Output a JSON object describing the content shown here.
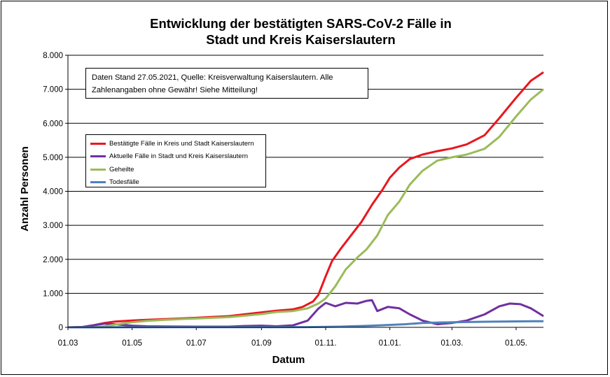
{
  "chart_data": {
    "type": "line",
    "title": "Entwicklung der bestätigten SARS-CoV-2 Fälle in\nStadt und Kreis Kaiserslautern",
    "xlabel": "Datum",
    "ylabel": "Anzahl Personen",
    "note": "Daten Stand 27.05.2021, Quelle: Kreisverwaltung Kaiserslautern. Alle Zahlenangaben ohne Gewähr! Siehe Mitteilung!",
    "ylim": [
      0,
      8000
    ],
    "y_ticks": [
      "0",
      "1.000",
      "2.000",
      "3.000",
      "4.000",
      "5.000",
      "6.000",
      "7.000",
      "8.000"
    ],
    "x_start": "2020-03-01",
    "x_end": "2021-05-27",
    "x_ticks": [
      {
        "date": "2020-03-01",
        "label": "01.03"
      },
      {
        "date": "2020-05-01",
        "label": "01.05"
      },
      {
        "date": "2020-07-01",
        "label": "01.07"
      },
      {
        "date": "2020-09-01",
        "label": "01.09"
      },
      {
        "date": "2020-11-01",
        "label": "01.11."
      },
      {
        "date": "2021-01-01",
        "label": "01.01."
      },
      {
        "date": "2021-03-01",
        "label": "01.03."
      },
      {
        "date": "2021-05-01",
        "label": "01.05."
      }
    ],
    "grid": true,
    "legend_position": "top-left",
    "series": [
      {
        "name": "Bestätigte Fälle in Kreis und Stadt Kaiserslautern",
        "color": "#e8171e",
        "points": [
          [
            "2020-03-01",
            0
          ],
          [
            "2020-03-15",
            10
          ],
          [
            "2020-03-25",
            60
          ],
          [
            "2020-04-05",
            130
          ],
          [
            "2020-04-15",
            170
          ],
          [
            "2020-05-01",
            200
          ],
          [
            "2020-05-15",
            220
          ],
          [
            "2020-06-01",
            240
          ],
          [
            "2020-06-15",
            260
          ],
          [
            "2020-07-01",
            280
          ],
          [
            "2020-07-15",
            305
          ],
          [
            "2020-08-01",
            330
          ],
          [
            "2020-08-15",
            380
          ],
          [
            "2020-09-01",
            440
          ],
          [
            "2020-09-15",
            490
          ],
          [
            "2020-10-01",
            530
          ],
          [
            "2020-10-10",
            600
          ],
          [
            "2020-10-20",
            760
          ],
          [
            "2020-10-25",
            950
          ],
          [
            "2020-11-01",
            1500
          ],
          [
            "2020-11-07",
            1950
          ],
          [
            "2020-11-15",
            2300
          ],
          [
            "2020-11-25",
            2700
          ],
          [
            "2020-12-05",
            3100
          ],
          [
            "2020-12-15",
            3600
          ],
          [
            "2020-12-25",
            4050
          ],
          [
            "2021-01-01",
            4400
          ],
          [
            "2021-01-10",
            4700
          ],
          [
            "2021-01-20",
            4950
          ],
          [
            "2021-02-01",
            5080
          ],
          [
            "2021-02-15",
            5180
          ],
          [
            "2021-03-01",
            5260
          ],
          [
            "2021-03-15",
            5380
          ],
          [
            "2021-04-01",
            5650
          ],
          [
            "2021-04-15",
            6150
          ],
          [
            "2021-05-01",
            6750
          ],
          [
            "2021-05-15",
            7250
          ],
          [
            "2021-05-27",
            7500
          ]
        ]
      },
      {
        "name": "Aktuelle Fälle in Stadt und Kreis Kaiserslautern",
        "color": "#7030a0",
        "points": [
          [
            "2020-03-01",
            0
          ],
          [
            "2020-03-15",
            10
          ],
          [
            "2020-03-25",
            60
          ],
          [
            "2020-04-05",
            110
          ],
          [
            "2020-04-15",
            90
          ],
          [
            "2020-05-01",
            50
          ],
          [
            "2020-05-15",
            30
          ],
          [
            "2020-06-01",
            25
          ],
          [
            "2020-07-01",
            20
          ],
          [
            "2020-08-01",
            20
          ],
          [
            "2020-08-15",
            40
          ],
          [
            "2020-09-01",
            50
          ],
          [
            "2020-09-15",
            30
          ],
          [
            "2020-10-01",
            60
          ],
          [
            "2020-10-15",
            200
          ],
          [
            "2020-10-25",
            550
          ],
          [
            "2020-11-01",
            720
          ],
          [
            "2020-11-10",
            620
          ],
          [
            "2020-11-20",
            720
          ],
          [
            "2020-12-01",
            700
          ],
          [
            "2020-12-10",
            780
          ],
          [
            "2020-12-15",
            800
          ],
          [
            "2020-12-20",
            480
          ],
          [
            "2020-12-30",
            600
          ],
          [
            "2021-01-10",
            560
          ],
          [
            "2021-01-20",
            380
          ],
          [
            "2021-02-01",
            200
          ],
          [
            "2021-02-15",
            90
          ],
          [
            "2021-03-01",
            130
          ],
          [
            "2021-03-15",
            200
          ],
          [
            "2021-04-01",
            380
          ],
          [
            "2021-04-15",
            620
          ],
          [
            "2021-04-25",
            700
          ],
          [
            "2021-05-05",
            680
          ],
          [
            "2021-05-15",
            560
          ],
          [
            "2021-05-27",
            330
          ]
        ]
      },
      {
        "name": "Geheilte",
        "color": "#9bbb59",
        "points": [
          [
            "2020-03-01",
            0
          ],
          [
            "2020-03-25",
            0
          ],
          [
            "2020-04-05",
            30
          ],
          [
            "2020-04-15",
            80
          ],
          [
            "2020-05-01",
            150
          ],
          [
            "2020-05-15",
            190
          ],
          [
            "2020-06-01",
            220
          ],
          [
            "2020-06-15",
            240
          ],
          [
            "2020-07-01",
            260
          ],
          [
            "2020-08-01",
            300
          ],
          [
            "2020-08-15",
            340
          ],
          [
            "2020-09-01",
            390
          ],
          [
            "2020-09-15",
            450
          ],
          [
            "2020-10-01",
            480
          ],
          [
            "2020-10-15",
            560
          ],
          [
            "2020-10-25",
            700
          ],
          [
            "2020-11-01",
            850
          ],
          [
            "2020-11-10",
            1200
          ],
          [
            "2020-11-20",
            1700
          ],
          [
            "2020-12-01",
            2050
          ],
          [
            "2020-12-10",
            2300
          ],
          [
            "2020-12-20",
            2700
          ],
          [
            "2020-12-30",
            3300
          ],
          [
            "2021-01-10",
            3700
          ],
          [
            "2021-01-20",
            4200
          ],
          [
            "2021-02-01",
            4600
          ],
          [
            "2021-02-15",
            4900
          ],
          [
            "2021-03-01",
            5000
          ],
          [
            "2021-03-15",
            5080
          ],
          [
            "2021-04-01",
            5250
          ],
          [
            "2021-04-15",
            5600
          ],
          [
            "2021-05-01",
            6200
          ],
          [
            "2021-05-15",
            6700
          ],
          [
            "2021-05-27",
            7000
          ]
        ]
      },
      {
        "name": "Todesfälle",
        "color": "#4f81bd",
        "points": [
          [
            "2020-03-01",
            0
          ],
          [
            "2020-04-15",
            2
          ],
          [
            "2020-06-01",
            5
          ],
          [
            "2020-09-01",
            6
          ],
          [
            "2020-10-15",
            8
          ],
          [
            "2020-11-15",
            20
          ],
          [
            "2020-12-15",
            50
          ],
          [
            "2021-01-15",
            90
          ],
          [
            "2021-02-01",
            130
          ],
          [
            "2021-03-01",
            150
          ],
          [
            "2021-04-01",
            165
          ],
          [
            "2021-05-01",
            175
          ],
          [
            "2021-05-27",
            180
          ]
        ]
      }
    ]
  }
}
